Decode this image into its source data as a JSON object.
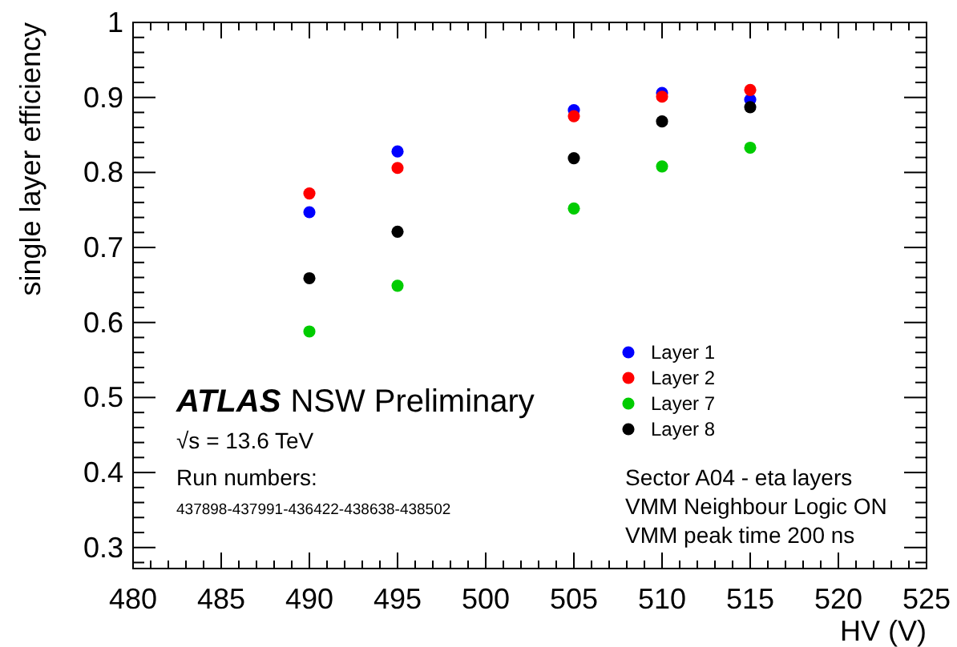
{
  "chart_data": {
    "type": "scatter",
    "xlabel": "HV (V)",
    "ylabel": "single layer efficiency",
    "xlim": [
      480,
      525
    ],
    "xticks": [
      480,
      485,
      490,
      495,
      500,
      505,
      510,
      515,
      520,
      525
    ],
    "ylim": [
      0.272,
      1
    ],
    "yticks": [
      {
        "value": 0.3,
        "label": "0.3"
      },
      {
        "value": 0.4,
        "label": "0.4"
      },
      {
        "value": 0.5,
        "label": "0.5"
      },
      {
        "value": 0.6,
        "label": "0.6"
      },
      {
        "value": 0.7,
        "label": "0.7"
      },
      {
        "value": 0.8,
        "label": "0.8"
      },
      {
        "value": 0.9,
        "label": "0.9"
      },
      {
        "value": 1,
        "label": "1"
      }
    ],
    "x": [
      490,
      495,
      505,
      510,
      515
    ],
    "series": [
      {
        "name": "Layer 1",
        "color": "#0000ff",
        "values": [
          0.747,
          0.828,
          0.883,
          0.906,
          0.897
        ]
      },
      {
        "name": "Layer 2",
        "color": "#ff0000",
        "values": [
          0.772,
          0.806,
          0.875,
          0.901,
          0.91
        ]
      },
      {
        "name": "Layer 7",
        "color": "#00cc00",
        "values": [
          0.588,
          0.649,
          0.752,
          0.808,
          0.833
        ]
      },
      {
        "name": "Layer 8",
        "color": "#000000",
        "values": [
          0.659,
          0.721,
          0.819,
          0.868,
          0.887
        ]
      }
    ],
    "marker": "circle",
    "grid": false,
    "legend": "bottom right",
    "annotations": [
      "ATLAS",
      "NSW Preliminary",
      "√s = 13.6 TeV",
      "Run numbers:",
      "437898-437991-436422-438638-438502",
      "Sector A04 - eta layers",
      "VMM Neighbour Logic ON",
      "VMM peak time 200 ns"
    ]
  }
}
